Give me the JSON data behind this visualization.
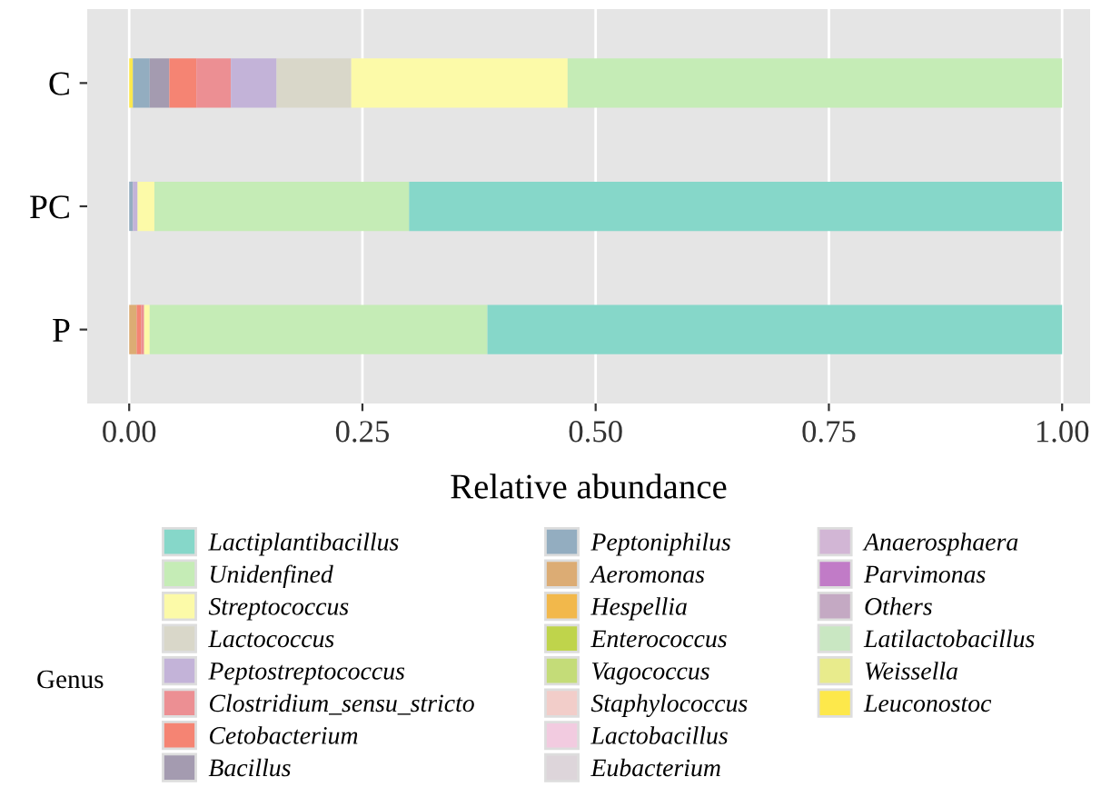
{
  "chart_data": {
    "type": "bar",
    "orientation": "horizontal",
    "stacked": true,
    "categories": [
      "C",
      "PC",
      "P"
    ],
    "xlabel": "Relative abundance",
    "legend_title": "Genus",
    "legend": "bottom",
    "grid": "x",
    "xlim": [
      -0.045,
      1.03
    ],
    "xticks": [
      {
        "value": 0,
        "label": "0.00"
      },
      {
        "value": 0.25,
        "label": "0.25"
      },
      {
        "value": 0.5,
        "label": "0.50"
      },
      {
        "value": 0.75,
        "label": "0.75"
      },
      {
        "value": 1,
        "label": "1.00"
      }
    ],
    "series": [
      {
        "name": "Leuconostoc",
        "color": "#fde84b",
        "values": [
          0.004,
          0,
          0
        ]
      },
      {
        "name": "Weissella",
        "color": "#e8eb8c",
        "values": [
          0,
          0,
          0
        ]
      },
      {
        "name": "Latilactobacillus",
        "color": "#c9e7c2",
        "values": [
          0,
          0,
          0
        ]
      },
      {
        "name": "Others",
        "color": "#c4a9c3",
        "values": [
          0,
          0,
          0
        ]
      },
      {
        "name": "Parvimonas",
        "color": "#c17bc7",
        "values": [
          0,
          0,
          0
        ]
      },
      {
        "name": "Anaerosphaera",
        "color": "#d2b6d5",
        "values": [
          0,
          0,
          0
        ]
      },
      {
        "name": "Eubacterium",
        "color": "#ddd5da",
        "values": [
          0,
          0,
          0
        ]
      },
      {
        "name": "Lactobacillus",
        "color": "#f2cbe0",
        "values": [
          0,
          0,
          0
        ]
      },
      {
        "name": "Staphylococcus",
        "color": "#f2cdc9",
        "values": [
          0,
          0,
          0
        ]
      },
      {
        "name": "Vagococcus",
        "color": "#c4dc78",
        "values": [
          0,
          0,
          0
        ]
      },
      {
        "name": "Enterococcus",
        "color": "#bfd44b",
        "values": [
          0,
          0,
          0
        ]
      },
      {
        "name": "Hespellia",
        "color": "#f2b84b",
        "values": [
          0,
          0,
          0
        ]
      },
      {
        "name": "Aeromonas",
        "color": "#dcac74",
        "values": [
          0,
          0,
          0.008
        ]
      },
      {
        "name": "Peptoniphilus",
        "color": "#93adc0",
        "values": [
          0.018,
          0.004,
          0
        ]
      },
      {
        "name": "Bacillus",
        "color": "#a49bb0",
        "values": [
          0.021,
          0,
          0
        ]
      },
      {
        "name": "Cetobacterium",
        "color": "#f58473",
        "values": [
          0.029,
          0,
          0.005
        ]
      },
      {
        "name": "Clostridium_sensu_stricto",
        "color": "#ec8f93",
        "values": [
          0.037,
          0,
          0.003
        ]
      },
      {
        "name": "Peptostreptococcus",
        "color": "#c3b3d8",
        "values": [
          0.049,
          0.005,
          0
        ]
      },
      {
        "name": "Lactococcus",
        "color": "#d9d7c9",
        "values": [
          0.08,
          0,
          0
        ]
      },
      {
        "name": "Streptococcus",
        "color": "#fcfaa8",
        "values": [
          0.232,
          0.018,
          0.006
        ]
      },
      {
        "name": "Unidenfined",
        "color": "#c5ecb6",
        "values": [
          0.53,
          0.273,
          0.362
        ]
      },
      {
        "name": "Lactiplantibacillus",
        "color": "#86d7c9",
        "values": [
          0,
          0.7,
          0.616
        ]
      }
    ]
  }
}
